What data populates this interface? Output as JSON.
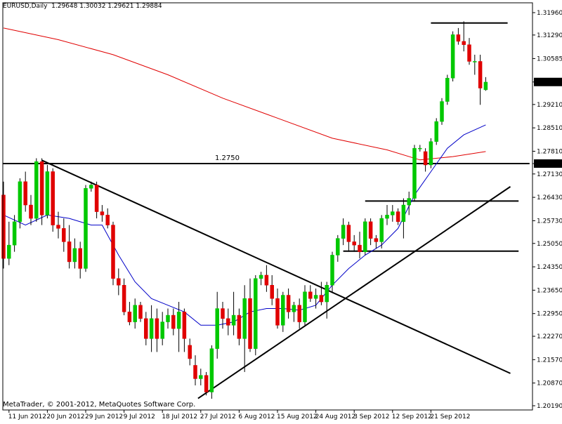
{
  "header": {
    "symbol": "EURUSD,Daily",
    "ohlc": "1.29648 1.30032 1.29621 1.29884"
  },
  "footer": {
    "copyright": "MetaTrader, © 2001-2012, MetaQuotes Software Corp."
  },
  "colors": {
    "background": "#ffffff",
    "bull_candle": "#00c800",
    "bear_candle": "#e00000",
    "ma_slow": "#e00000",
    "ma_fast": "#0000c8",
    "lines": "#000000",
    "price_tag_bg": "#000000",
    "price_tag_text": "#ffffff"
  },
  "chart_data": {
    "type": "candlestick",
    "price_axis_ticks": [
      "1.31960",
      "1.31290",
      "1.30585",
      "1.29884",
      "1.29210",
      "1.28510",
      "1.27810",
      "1.27441",
      "1.27130",
      "1.26430",
      "1.25730",
      "1.25050",
      "1.24350",
      "1.23650",
      "1.22950",
      "1.22270",
      "1.21570",
      "1.20870",
      "1.20190"
    ],
    "price_axis_values": [
      1.3196,
      1.3129,
      1.30585,
      1.29884,
      1.2921,
      1.2851,
      1.2781,
      1.27441,
      1.2713,
      1.2643,
      1.2573,
      1.2505,
      1.2435,
      1.2365,
      1.2295,
      1.2227,
      1.2157,
      1.2087,
      1.2019
    ],
    "highlighted_prices": [
      "1.29884",
      "1.27441"
    ],
    "date_labels": [
      "11 Jun 2012",
      "20 Jun 2012",
      "29 Jun 2012",
      "9 Jul 2012",
      "18 Jul 2012",
      "27 Jul 2012",
      "6 Aug 2012",
      "15 Aug 2012",
      "24 Aug 2012",
      "3 Sep 2012",
      "12 Sep 2012",
      "21 Sep 2012"
    ],
    "date_label_bar_index": [
      1,
      8,
      15,
      22,
      29,
      36,
      43,
      50,
      57,
      64,
      71,
      78
    ],
    "level_label": "1.2750",
    "ylim": [
      1.2019,
      1.3196
    ],
    "bars": [
      [
        1.265,
        1.269,
        1.243,
        1.246
      ],
      [
        1.246,
        1.257,
        1.244,
        1.25
      ],
      [
        1.25,
        1.259,
        1.248,
        1.257
      ],
      [
        1.257,
        1.27,
        1.255,
        1.269
      ],
      [
        1.269,
        1.272,
        1.26,
        1.262
      ],
      [
        1.262,
        1.265,
        1.256,
        1.258
      ],
      [
        1.258,
        1.276,
        1.257,
        1.275
      ],
      [
        1.275,
        1.276,
        1.256,
        1.259
      ],
      [
        1.259,
        1.274,
        1.258,
        1.272
      ],
      [
        1.272,
        1.273,
        1.254,
        1.256
      ],
      [
        1.256,
        1.26,
        1.252,
        1.255
      ],
      [
        1.255,
        1.258,
        1.248,
        1.251
      ],
      [
        1.251,
        1.256,
        1.243,
        1.245
      ],
      [
        1.245,
        1.252,
        1.243,
        1.249
      ],
      [
        1.249,
        1.251,
        1.24,
        1.243
      ],
      [
        1.243,
        1.268,
        1.242,
        1.267
      ],
      [
        1.267,
        1.269,
        1.266,
        1.268
      ],
      [
        1.268,
        1.269,
        1.258,
        1.26
      ],
      [
        1.26,
        1.262,
        1.257,
        1.259
      ],
      [
        1.259,
        1.261,
        1.255,
        1.256
      ],
      [
        1.256,
        1.257,
        1.238,
        1.24
      ],
      [
        1.24,
        1.243,
        1.235,
        1.238
      ],
      [
        1.238,
        1.24,
        1.229,
        1.23
      ],
      [
        1.23,
        1.233,
        1.226,
        1.227
      ],
      [
        1.227,
        1.234,
        1.225,
        1.232
      ],
      [
        1.232,
        1.233,
        1.227,
        1.228
      ],
      [
        1.228,
        1.23,
        1.22,
        1.222
      ],
      [
        1.222,
        1.232,
        1.218,
        1.228
      ],
      [
        1.228,
        1.231,
        1.218,
        1.222
      ],
      [
        1.222,
        1.23,
        1.22,
        1.227
      ],
      [
        1.227,
        1.231,
        1.225,
        1.229
      ],
      [
        1.229,
        1.231,
        1.223,
        1.225
      ],
      [
        1.225,
        1.233,
        1.218,
        1.23
      ],
      [
        1.23,
        1.231,
        1.218,
        1.222
      ],
      [
        1.22,
        1.222,
        1.214,
        1.216
      ],
      [
        1.214,
        1.217,
        1.208,
        1.21
      ],
      [
        1.21,
        1.213,
        1.208,
        1.211
      ],
      [
        1.211,
        1.212,
        1.205,
        1.206
      ],
      [
        1.206,
        1.22,
        1.204,
        1.219
      ],
      [
        1.219,
        1.236,
        1.216,
        1.231
      ],
      [
        1.231,
        1.233,
        1.225,
        1.228
      ],
      [
        1.228,
        1.231,
        1.223,
        1.226
      ],
      [
        1.226,
        1.236,
        1.223,
        1.229
      ],
      [
        1.229,
        1.231,
        1.22,
        1.222
      ],
      [
        1.222,
        1.238,
        1.212,
        1.234
      ],
      [
        1.234,
        1.24,
        1.218,
        1.219
      ],
      [
        1.219,
        1.241,
        1.217,
        1.24
      ],
      [
        1.24,
        1.242,
        1.238,
        1.241
      ],
      [
        1.241,
        1.244,
        1.236,
        1.238
      ],
      [
        1.238,
        1.241,
        1.232,
        1.234
      ],
      [
        1.234,
        1.237,
        1.225,
        1.226
      ],
      [
        1.226,
        1.236,
        1.224,
        1.235
      ],
      [
        1.235,
        1.237,
        1.228,
        1.23
      ],
      [
        1.23,
        1.233,
        1.227,
        1.232
      ],
      [
        1.232,
        1.234,
        1.225,
        1.227
      ],
      [
        1.227,
        1.238,
        1.226,
        1.236
      ],
      [
        1.236,
        1.238,
        1.233,
        1.234
      ],
      [
        1.234,
        1.237,
        1.231,
        1.235
      ],
      [
        1.235,
        1.239,
        1.232,
        1.233
      ],
      [
        1.233,
        1.239,
        1.228,
        1.238
      ],
      [
        1.238,
        1.248,
        1.236,
        1.247
      ],
      [
        1.247,
        1.253,
        1.245,
        1.252
      ],
      [
        1.252,
        1.258,
        1.25,
        1.256
      ],
      [
        1.256,
        1.257,
        1.248,
        1.251
      ],
      [
        1.251,
        1.253,
        1.248,
        1.25
      ],
      [
        1.25,
        1.254,
        1.246,
        1.248
      ],
      [
        1.248,
        1.258,
        1.247,
        1.257
      ],
      [
        1.257,
        1.258,
        1.25,
        1.252
      ],
      [
        1.252,
        1.253,
        1.249,
        1.251
      ],
      [
        1.251,
        1.259,
        1.249,
        1.258
      ],
      [
        1.258,
        1.262,
        1.256,
        1.259
      ],
      [
        1.259,
        1.262,
        1.257,
        1.26
      ],
      [
        1.26,
        1.261,
        1.256,
        1.257
      ],
      [
        1.257,
        1.264,
        1.252,
        1.262
      ],
      [
        1.262,
        1.266,
        1.259,
        1.264
      ],
      [
        1.264,
        1.28,
        1.263,
        1.279
      ],
      [
        1.279,
        1.28,
        1.278,
        1.279
      ],
      [
        1.278,
        1.279,
        1.272,
        1.274
      ],
      [
        1.274,
        1.282,
        1.273,
        1.281
      ],
      [
        1.281,
        1.288,
        1.28,
        1.287
      ],
      [
        1.287,
        1.294,
        1.286,
        1.293
      ],
      [
        1.293,
        1.301,
        1.292,
        1.3
      ],
      [
        1.3,
        1.314,
        1.299,
        1.313
      ],
      [
        1.313,
        1.315,
        1.31,
        1.311
      ],
      [
        1.311,
        1.317,
        1.308,
        1.31
      ],
      [
        1.31,
        1.312,
        1.304,
        1.305
      ],
      [
        1.305,
        1.307,
        1.301,
        1.305
      ],
      [
        1.305,
        1.307,
        1.292,
        1.297
      ],
      [
        1.2965,
        1.3003,
        1.2962,
        1.2988
      ]
    ],
    "ma_slow": [
      [
        0,
        1.315
      ],
      [
        10,
        1.3115
      ],
      [
        20,
        1.307
      ],
      [
        30,
        1.301
      ],
      [
        40,
        1.294
      ],
      [
        50,
        1.288
      ],
      [
        60,
        1.282
      ],
      [
        70,
        1.2785
      ],
      [
        76,
        1.2755
      ],
      [
        82,
        1.2765
      ],
      [
        88,
        1.278
      ]
    ],
    "ma_fast": [
      [
        0,
        1.259
      ],
      [
        4,
        1.256
      ],
      [
        8,
        1.259
      ],
      [
        12,
        1.258
      ],
      [
        16,
        1.256
      ],
      [
        18,
        1.256
      ],
      [
        21,
        1.247
      ],
      [
        24,
        1.239
      ],
      [
        27,
        1.234
      ],
      [
        30,
        1.232
      ],
      [
        33,
        1.23
      ],
      [
        36,
        1.226
      ],
      [
        39,
        1.226
      ],
      [
        42,
        1.227
      ],
      [
        45,
        1.23
      ],
      [
        48,
        1.231
      ],
      [
        51,
        1.231
      ],
      [
        54,
        1.2305
      ],
      [
        57,
        1.232
      ],
      [
        60,
        1.238
      ],
      [
        63,
        1.243
      ],
      [
        66,
        1.247
      ],
      [
        69,
        1.25
      ],
      [
        72,
        1.255
      ],
      [
        75,
        1.265
      ],
      [
        78,
        1.272
      ],
      [
        81,
        1.279
      ],
      [
        84,
        1.283
      ],
      [
        88,
        1.286
      ]
    ],
    "horizontal_lines": [
      {
        "price": 1.2744,
        "from_bar": -1,
        "to_bar": 96
      },
      {
        "price": 1.3165,
        "from_bar": 78,
        "to_bar": 92
      },
      {
        "price": 1.2632,
        "from_bar": 66,
        "to_bar": 94
      },
      {
        "price": 1.2482,
        "from_bar": 62,
        "to_bar": 94
      }
    ],
    "trend_lines": [
      {
        "from": [
          7,
          1.2754
        ],
        "to": [
          92.5,
          1.2116
        ]
      },
      {
        "from": [
          35.5,
          1.2041
        ],
        "to": [
          92.5,
          1.2675
        ]
      }
    ]
  }
}
